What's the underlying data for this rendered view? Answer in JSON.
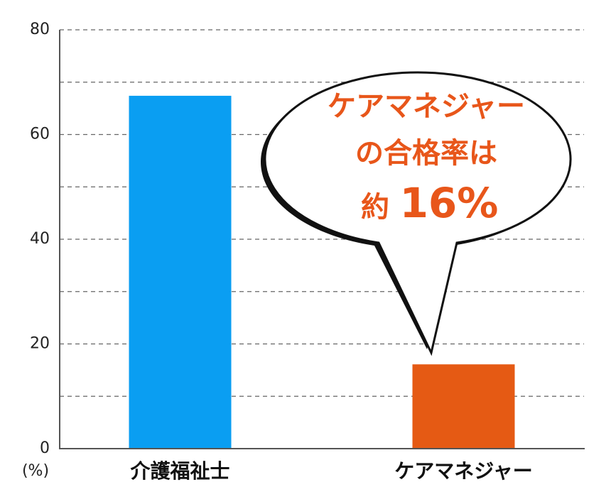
{
  "chart_data": {
    "type": "bar",
    "categories": [
      "介護福祉士",
      "ケアマネジャー"
    ],
    "values": [
      67.4,
      16.1
    ],
    "colors": [
      "#0a9ef2",
      "#e55a14"
    ],
    "ylim": [
      0,
      80
    ],
    "yticks": [
      0,
      20,
      40,
      60,
      80
    ],
    "minor_yticks": [
      10,
      30,
      50,
      70
    ],
    "grid": true,
    "y_unit": "(%)",
    "callout": {
      "lines": [
        "ケアマネジャー",
        "の合格率は"
      ],
      "prefix": "約",
      "value_text": "16%"
    }
  }
}
